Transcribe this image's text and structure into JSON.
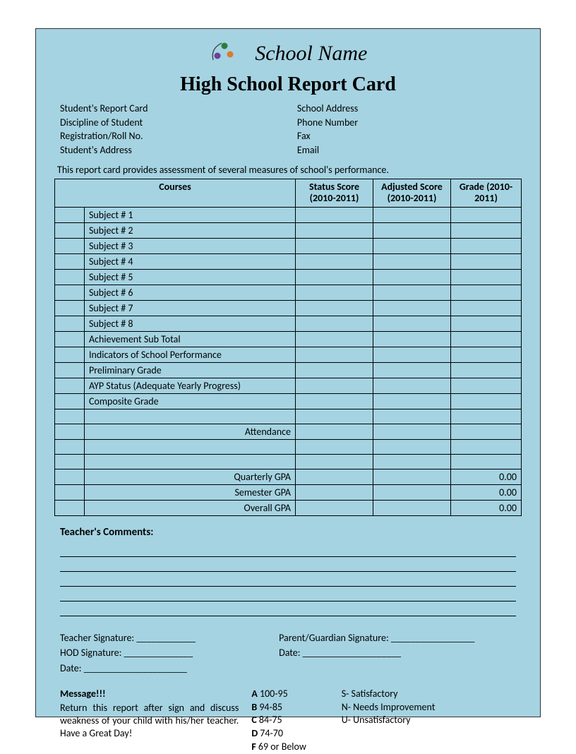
{
  "colors": {
    "card_bg": "#a5d3e2",
    "border": "#000000",
    "page_bg": "#ffffff",
    "text": "#000000"
  },
  "header": {
    "school_name": "School Name",
    "title": "High School Report Card"
  },
  "student_info": {
    "left": [
      "Student's Report Card",
      "Discipline of Student",
      "Registration/Roll No.",
      "Student's Address"
    ],
    "right": [
      "School Address",
      "Phone Number",
      "Fax",
      "Email"
    ]
  },
  "intro": "This report card provides assessment of several measures of school's performance.",
  "table": {
    "headers": {
      "courses": "Courses",
      "status_score": "Status Score (2010-2011)",
      "adjusted_score": "Adjusted Score (2010-2011)",
      "grade": "Grade (2010-2011)"
    },
    "subjects": [
      "Subject # 1",
      "Subject # 2",
      "Subject # 3",
      "Subject # 4",
      "Subject # 5",
      "Subject # 6",
      "Subject # 7",
      "Subject # 8"
    ],
    "summary_rows": [
      "Achievement Sub Total",
      "Indicators of School Performance",
      "Preliminary Grade",
      "AYP Status (Adequate Yearly Progress)",
      "Composite Grade"
    ],
    "attendance_label": "Attendance",
    "gpa_rows": [
      {
        "label": "Quarterly GPA",
        "value": "0.00"
      },
      {
        "label": "Semester GPA",
        "value": "0.00"
      },
      {
        "label": "Overall GPA",
        "value": "0.00"
      }
    ]
  },
  "comments": {
    "title": "Teacher's Comments:",
    "line_count": 5
  },
  "signatures": {
    "teacher": "Teacher Signature: ____________",
    "hod": "HOD Signature: ______________",
    "date1": "Date: _____________________",
    "parent": "Parent/Guardian Signature: _________________",
    "date2": "Date: ____________________"
  },
  "message": {
    "title": "Message!!!",
    "body": "Return this report after sign and discuss weakness of your child with his/her teacher.  Have a Great Day!"
  },
  "legend": {
    "col1": [
      {
        "k": "A",
        "v": "100-95"
      },
      {
        "k": "B",
        "v": "94-85"
      },
      {
        "k": "C",
        "v": "84-75"
      },
      {
        "k": "D",
        "v": "74-70"
      },
      {
        "k": "F",
        "v": " 69 or Below"
      }
    ],
    "col2": [
      {
        "k": "S-",
        "v": "Satisfactory"
      },
      {
        "k": "N-",
        "v": "Needs Improvement"
      },
      {
        "k": "U-",
        "v": "Unsatisfactory"
      }
    ]
  }
}
